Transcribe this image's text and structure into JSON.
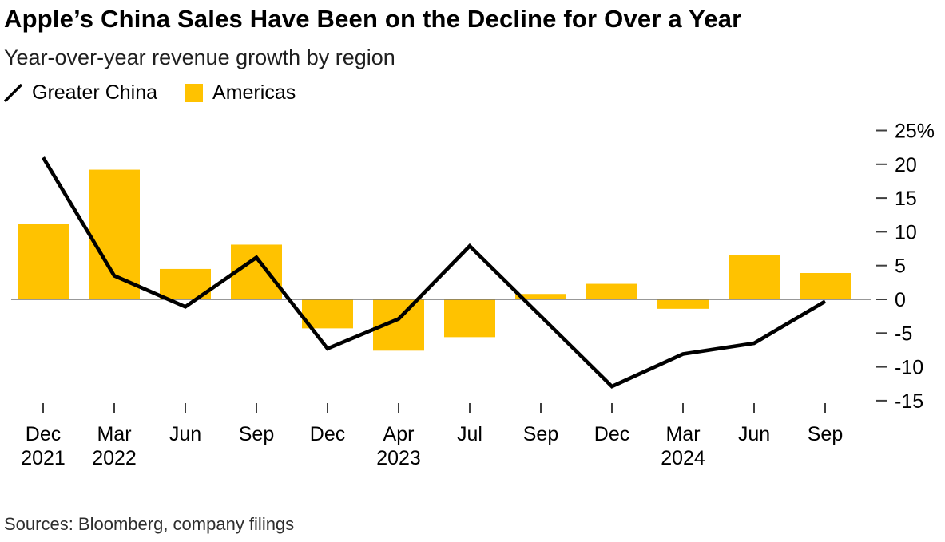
{
  "header": {
    "title": "Apple’s China Sales Have Been on the Decline for Over a Year",
    "subtitle": "Year-over-year revenue growth by region"
  },
  "legend": {
    "items": [
      {
        "label": "Greater China",
        "marker": "line-slash-icon",
        "color": "#000000"
      },
      {
        "label": "Americas",
        "marker": "square-icon",
        "color": "#FFC200"
      }
    ]
  },
  "chart_data": {
    "type": "combo",
    "title": "Apple’s China Sales Have Been on the Decline for Over a Year",
    "subtitle": "Year-over-year revenue growth by region",
    "categories": [
      "Dec 2021",
      "Mar 2022",
      "Jun 2022",
      "Sep 2022",
      "Dec 2022",
      "Apr 2023",
      "Jul 2023",
      "Sep 2023",
      "Dec 2023",
      "Mar 2024",
      "Jun 2024",
      "Sep 2024"
    ],
    "x_tick_labels": [
      {
        "month": "Dec",
        "year": "2021"
      },
      {
        "month": "Mar",
        "year": "2022"
      },
      {
        "month": "Jun",
        "year": ""
      },
      {
        "month": "Sep",
        "year": ""
      },
      {
        "month": "Dec",
        "year": ""
      },
      {
        "month": "Apr",
        "year": "2023"
      },
      {
        "month": "Jul",
        "year": ""
      },
      {
        "month": "Sep",
        "year": ""
      },
      {
        "month": "Dec",
        "year": ""
      },
      {
        "month": "Mar",
        "year": "2024"
      },
      {
        "month": "Jun",
        "year": ""
      },
      {
        "month": "Sep",
        "year": ""
      }
    ],
    "series": [
      {
        "name": "Americas",
        "type": "bar",
        "color": "#FFC200",
        "values": [
          11.2,
          19.2,
          4.5,
          8.1,
          -4.3,
          -7.6,
          -5.6,
          0.8,
          2.3,
          -1.4,
          6.5,
          3.9
        ]
      },
      {
        "name": "Greater China",
        "type": "line",
        "color": "#000000",
        "values": [
          21.0,
          3.5,
          -1.1,
          6.2,
          -7.3,
          -2.9,
          7.9,
          -2.5,
          -12.9,
          -8.1,
          -6.5,
          -0.3
        ]
      }
    ],
    "y_axis": {
      "side": "right",
      "unit": "%",
      "ticks": [
        25,
        20,
        15,
        10,
        5,
        0,
        -5,
        -10,
        -15
      ],
      "tick_labels": [
        "25%",
        "20",
        "15",
        "10",
        "5",
        "0",
        "-5",
        "-10",
        "-15"
      ],
      "range": [
        -17,
        27
      ]
    },
    "grid": false,
    "zero_baseline": true,
    "legend_position": "top-left"
  },
  "footer": {
    "source": "Sources: Bloomberg, company filings"
  }
}
